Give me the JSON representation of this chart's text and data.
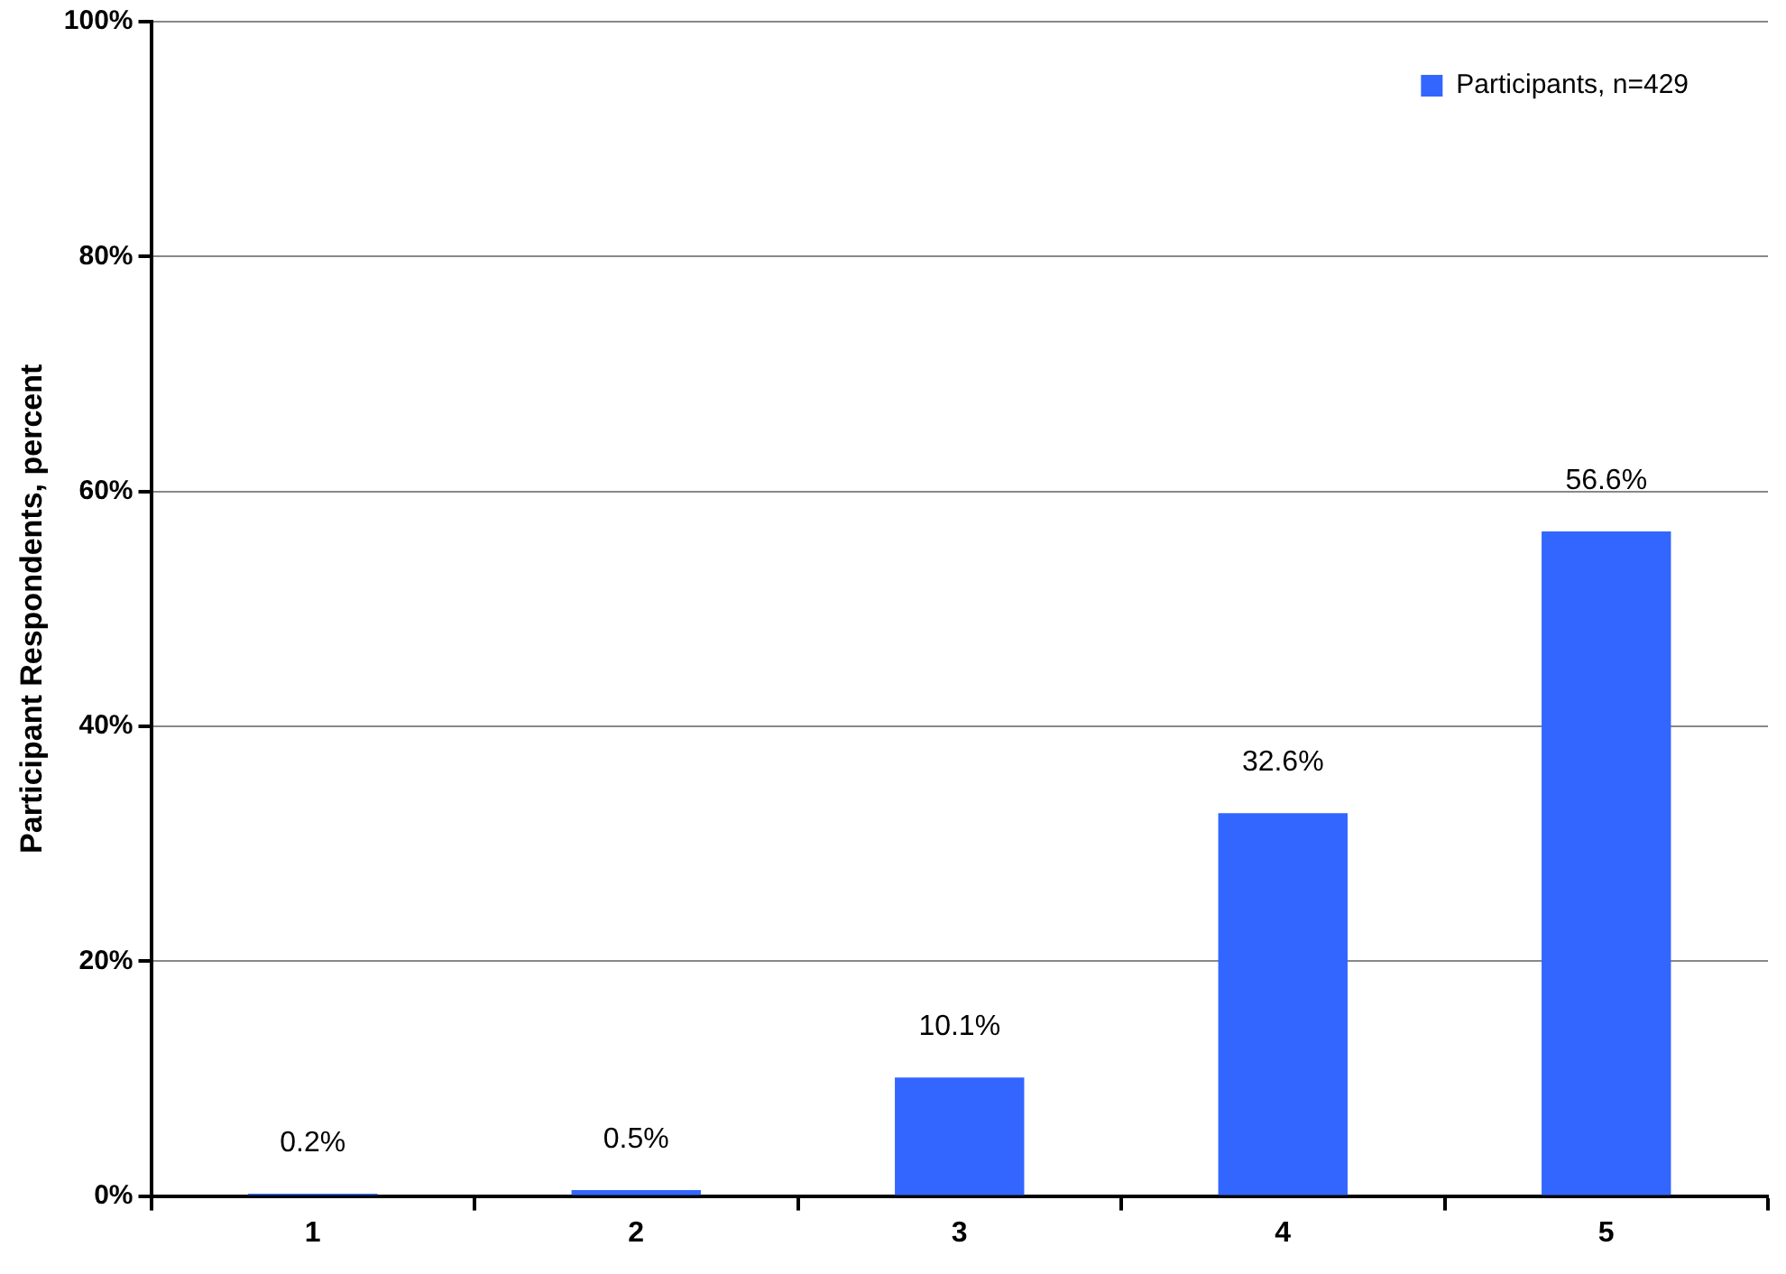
{
  "chart_data": {
    "type": "bar",
    "ylabel": "Participant Respondents, percent",
    "categories": [
      "1",
      "2",
      "3",
      "4",
      "5"
    ],
    "series": [
      {
        "name": "Participants, n=429",
        "color": "#3366ff",
        "values": [
          0.2,
          0.5,
          10.1,
          32.6,
          56.6
        ],
        "value_labels": [
          "0.2%",
          "0.5%",
          "10.1%",
          "32.6%",
          "56.6%"
        ]
      }
    ],
    "ylim": [
      0,
      100
    ],
    "yticks": [
      {
        "value": 0,
        "label": "0%"
      },
      {
        "value": 20,
        "label": "20%"
      },
      {
        "value": 40,
        "label": "40%"
      },
      {
        "value": 60,
        "label": "60%"
      },
      {
        "value": 80,
        "label": "80%"
      },
      {
        "value": 100,
        "label": "100%"
      }
    ],
    "grid": "y",
    "legend": "top right"
  }
}
